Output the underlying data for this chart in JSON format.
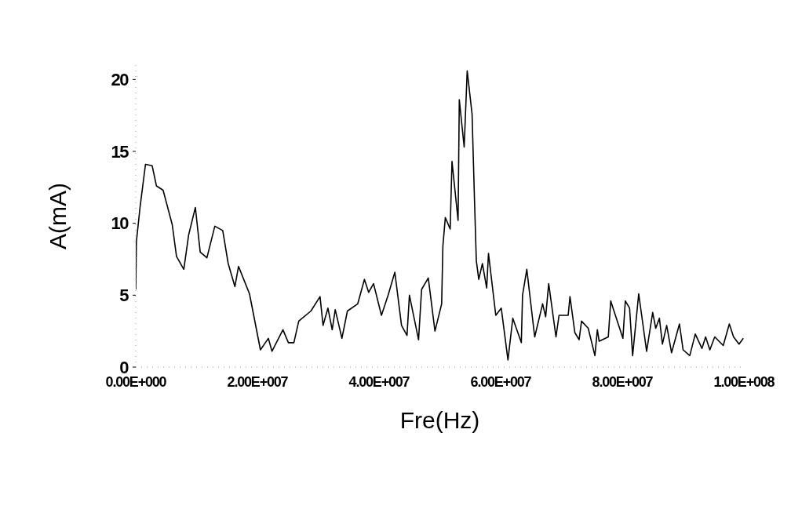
{
  "chart_data": {
    "type": "line",
    "xlabel": "Fre(Hz)",
    "ylabel": "A(mA)",
    "x": [
      0,
      100000,
      700000,
      1600000,
      2700000,
      3400000,
      4500000,
      6000000,
      6700000,
      7900000,
      8700000,
      9800000,
      10600000,
      11700000,
      13000000,
      14300000,
      15200000,
      16300000,
      16900000,
      18700000,
      20500000,
      21800000,
      22400000,
      24200000,
      25100000,
      26000000,
      26800000,
      28800000,
      30300000,
      30800000,
      31600000,
      32300000,
      32800000,
      33900000,
      34800000,
      36500000,
      37600000,
      38300000,
      39100000,
      40400000,
      41500000,
      42600000,
      43700000,
      44600000,
      45000000,
      46500000,
      47000000,
      48100000,
      49200000,
      50300000,
      50500000,
      50900000,
      51700000,
      52000000,
      53000000,
      53200000,
      54000000,
      54500000,
      55300000,
      55700000,
      56000000,
      56400000,
      57000000,
      57700000,
      58000000,
      59200000,
      60100000,
      61200000,
      62000000,
      63400000,
      63600000,
      64300000,
      65600000,
      66900000,
      67400000,
      67900000,
      69100000,
      69600000,
      71100000,
      71400000,
      72200000,
      72900000,
      73300000,
      74400000,
      75500000,
      75900000,
      76200000,
      77700000,
      78100000,
      80100000,
      80500000,
      81200000,
      81700000,
      82700000,
      84000000,
      85000000,
      85500000,
      86100000,
      86600000,
      87300000,
      88100000,
      89400000,
      90000000,
      91100000,
      92000000,
      93100000,
      93700000,
      94400000,
      95200000,
      96600000,
      97600000,
      98300000,
      99200000,
      99900000
    ],
    "series": [
      {
        "color": "#000000",
        "values": [
          5.4,
          8.7,
          11.1,
          14.1,
          14.0,
          12.6,
          12.3,
          9.9,
          7.7,
          6.8,
          9.2,
          11.1,
          8.0,
          7.6,
          9.8,
          9.5,
          7.2,
          5.6,
          7.0,
          5.1,
          1.2,
          2.0,
          1.1,
          2.6,
          1.7,
          1.7,
          3.2,
          3.9,
          4.9,
          2.9,
          4.1,
          2.6,
          4.0,
          2.0,
          3.9,
          4.4,
          6.1,
          5.2,
          5.8,
          3.6,
          5.0,
          6.6,
          2.9,
          2.2,
          5.0,
          1.9,
          5.4,
          6.2,
          2.5,
          4.4,
          8.4,
          10.4,
          9.6,
          14.3,
          10.2,
          18.6,
          15.3,
          20.6,
          17.6,
          11.6,
          7.4,
          6.1,
          7.2,
          5.5,
          7.9,
          3.6,
          4.1,
          0.5,
          3.4,
          1.7,
          5.0,
          6.8,
          2.1,
          4.4,
          3.5,
          5.8,
          2.1,
          3.6,
          3.6,
          4.9,
          2.4,
          1.9,
          3.2,
          2.7,
          0.8,
          2.6,
          1.8,
          2.1,
          4.6,
          2.0,
          4.6,
          4.1,
          0.8,
          5.1,
          1.1,
          3.8,
          2.7,
          3.4,
          1.6,
          2.9,
          1.0,
          3.0,
          1.2,
          0.8,
          2.3,
          1.3,
          2.1,
          1.2,
          2.1,
          1.5,
          3.0,
          2.1,
          1.6,
          2.0
        ]
      }
    ],
    "xlim": [
      0,
      100000000
    ],
    "xticks": [
      {
        "value": 0,
        "label": "0.00E+000"
      },
      {
        "value": 20000000,
        "label": "2.00E+007"
      },
      {
        "value": 40000000,
        "label": "4.00E+007"
      },
      {
        "value": 60000000,
        "label": "6.00E+007"
      },
      {
        "value": 80000000,
        "label": "8.00E+007"
      },
      {
        "value": 100000000,
        "label": "1.00E+008"
      }
    ],
    "ylim": [
      0,
      21
    ],
    "yticks": [
      0,
      5,
      10,
      15,
      20
    ],
    "grid": false,
    "legend": false,
    "marker": "none",
    "line_style": "solid"
  }
}
